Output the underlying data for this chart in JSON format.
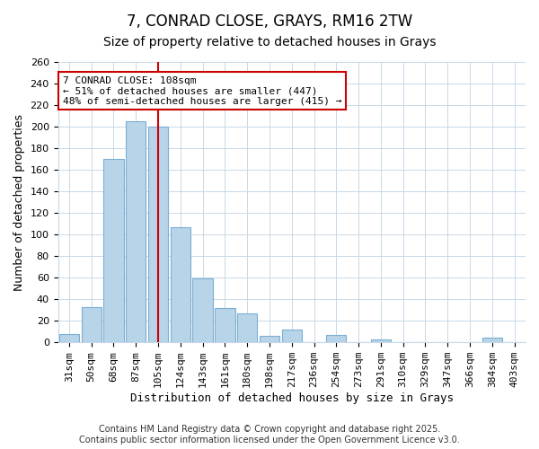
{
  "title": "7, CONRAD CLOSE, GRAYS, RM16 2TW",
  "subtitle": "Size of property relative to detached houses in Grays",
  "xlabel": "Distribution of detached houses by size in Grays",
  "ylabel": "Number of detached properties",
  "categories": [
    "31sqm",
    "50sqm",
    "68sqm",
    "87sqm",
    "105sqm",
    "124sqm",
    "143sqm",
    "161sqm",
    "180sqm",
    "198sqm",
    "217sqm",
    "236sqm",
    "254sqm",
    "273sqm",
    "291sqm",
    "310sqm",
    "329sqm",
    "347sqm",
    "366sqm",
    "384sqm",
    "403sqm"
  ],
  "values": [
    8,
    33,
    170,
    205,
    200,
    107,
    59,
    32,
    27,
    6,
    12,
    0,
    7,
    0,
    3,
    0,
    0,
    0,
    0,
    4,
    0
  ],
  "bar_color": "#b8d4e8",
  "bar_edge_color": "#7bafd4",
  "vline_x_index": 4,
  "vline_color": "#cc0000",
  "annotation_text": "7 CONRAD CLOSE: 108sqm\n← 51% of detached houses are smaller (447)\n48% of semi-detached houses are larger (415) →",
  "annotation_box_color": "#ffffff",
  "annotation_box_edge": "#cc0000",
  "ylim": [
    0,
    260
  ],
  "yticks": [
    0,
    20,
    40,
    60,
    80,
    100,
    120,
    140,
    160,
    180,
    200,
    220,
    240,
    260
  ],
  "footer": "Contains HM Land Registry data © Crown copyright and database right 2025.\nContains public sector information licensed under the Open Government Licence v3.0.",
  "title_fontsize": 12,
  "subtitle_fontsize": 10,
  "xlabel_fontsize": 9,
  "ylabel_fontsize": 9,
  "annotation_fontsize": 8,
  "footer_fontsize": 7,
  "tick_fontsize": 8
}
